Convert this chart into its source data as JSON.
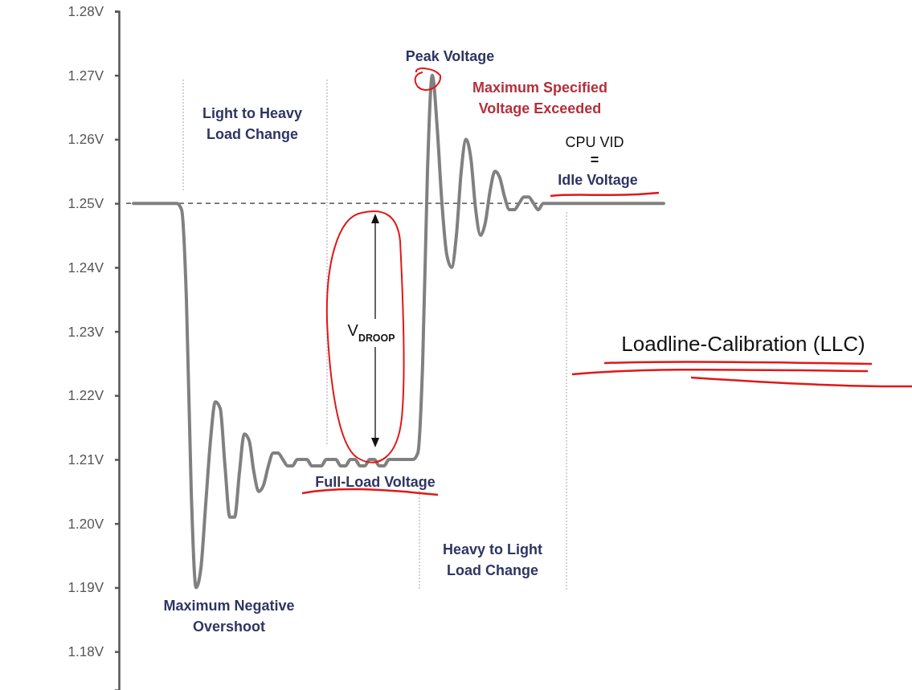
{
  "chart_data": {
    "type": "line",
    "tick_labels": "y",
    "grid": false,
    "marker": "none",
    "line_style": "solid",
    "ylim": [
      1.174,
      1.28
    ],
    "yticks": [
      {
        "value": 1.18,
        "label": "1.18V"
      },
      {
        "value": 1.19,
        "label": "1.19V"
      },
      {
        "value": 1.2,
        "label": "1.20V"
      },
      {
        "value": 1.21,
        "label": "1.21V"
      },
      {
        "value": 1.22,
        "label": "1.22V"
      },
      {
        "value": 1.23,
        "label": "1.23V"
      },
      {
        "value": 1.24,
        "label": "1.24V"
      },
      {
        "value": 1.25,
        "label": "1.25V"
      },
      {
        "value": 1.26,
        "label": "1.26V"
      },
      {
        "value": 1.27,
        "label": "1.27V"
      },
      {
        "value": 1.28,
        "label": "1.28V"
      }
    ],
    "categories": [
      null,
      null,
      null,
      null,
      null,
      null,
      null,
      null,
      null,
      null,
      null,
      null,
      null,
      null,
      null,
      null,
      null,
      null,
      null,
      null,
      null,
      null,
      null,
      null,
      null,
      null,
      null,
      null,
      null,
      null,
      null,
      null,
      null,
      null,
      null,
      null,
      null,
      null,
      null,
      null,
      null,
      null,
      null,
      null,
      null,
      null,
      null,
      null,
      null,
      null,
      null,
      null,
      null,
      null,
      null,
      null,
      null,
      null,
      null,
      null,
      null,
      null,
      null,
      null,
      null,
      null,
      null,
      null,
      null,
      null,
      null,
      null,
      null,
      null,
      null,
      null,
      null,
      null,
      null,
      null,
      null,
      null,
      null,
      null,
      null,
      null,
      null,
      null,
      null,
      null,
      null,
      null,
      null,
      null,
      null,
      null,
      null,
      null,
      null,
      null,
      null,
      null,
      null,
      null,
      null,
      null,
      null,
      null,
      null,
      null,
      null
    ],
    "series": [
      {
        "color": "#808080",
        "values": [
          1.25,
          1.25,
          1.25,
          1.25,
          1.25,
          1.25,
          1.25,
          1.25,
          1.25,
          1.25,
          1.249,
          1.235,
          1.205,
          1.19,
          1.193,
          1.203,
          1.213,
          1.219,
          1.218,
          1.209,
          1.201,
          1.201,
          1.208,
          1.214,
          1.213,
          1.208,
          1.205,
          1.206,
          1.209,
          1.211,
          1.211,
          1.21,
          1.209,
          1.209,
          1.21,
          1.21,
          1.21,
          1.209,
          1.209,
          1.209,
          1.21,
          1.21,
          1.21,
          1.209,
          1.209,
          1.21,
          1.21,
          1.209,
          1.209,
          1.21,
          1.21,
          1.209,
          1.209,
          1.21,
          1.21,
          1.21,
          1.21,
          1.21,
          1.21,
          1.211,
          1.225,
          1.255,
          1.27,
          1.262,
          1.25,
          1.242,
          1.24,
          1.245,
          1.255,
          1.26,
          1.257,
          1.249,
          1.245,
          1.247,
          1.252,
          1.255,
          1.254,
          1.251,
          1.249,
          1.249,
          1.25,
          1.251,
          1.251,
          1.25,
          1.249,
          1.25,
          1.25,
          1.25,
          1.25,
          1.25,
          1.25,
          1.25,
          1.25,
          1.25,
          1.25,
          1.25,
          1.25,
          1.25,
          1.25,
          1.25,
          1.25,
          1.25,
          1.25,
          1.25,
          1.25,
          1.25,
          1.25,
          1.25,
          1.25,
          1.25,
          1.25
        ]
      }
    ],
    "ref_lines": [
      {
        "axis": "y",
        "value": 1.25,
        "color": "#333333",
        "line_style": "dashed"
      }
    ],
    "annotations": [
      "Peak Voltage",
      "Maximum Specified\nVoltage Exceeded",
      "CPU VID",
      "=",
      "Idle Voltage",
      "Light to Heavy\nLoad Change",
      "V$_{DROOP}$",
      "Full-Load Voltage",
      "Heavy to Light\nLoad Change",
      "Maximum Negative\nOvershoot",
      "Loadline-Calibration (LLC)"
    ]
  }
}
